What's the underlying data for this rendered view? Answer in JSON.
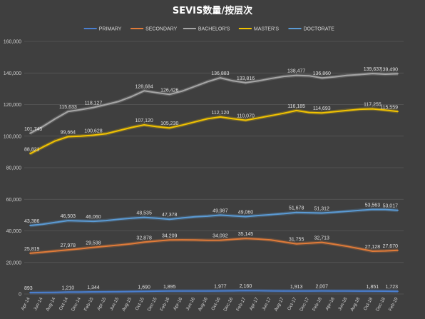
{
  "chart_data": {
    "type": "line",
    "title": "SEVIS数量/按层次",
    "ylim": [
      0,
      160000
    ],
    "yticks": [
      0,
      20000,
      40000,
      60000,
      80000,
      100000,
      120000,
      140000,
      160000
    ],
    "ytick_labels": [
      "0",
      "20,000",
      "40,000",
      "60,000",
      "80,000",
      "100,000",
      "120,000",
      "140,000",
      "160,000"
    ],
    "grid": true,
    "legend_position": "top",
    "x": [
      "Apr-14",
      "Jun-14",
      "Aug-14",
      "Oct-14",
      "Dec-14",
      "Feb-15",
      "Apr-15",
      "Jun-15",
      "Aug-15",
      "Oct-15",
      "Dec-15",
      "Feb-16",
      "Apr-16",
      "Jun-16",
      "Aug-16",
      "Oct-16",
      "Dec-16",
      "Feb-17",
      "Apr-17",
      "Jun-17",
      "Aug-17",
      "Oct-17",
      "Dec-17",
      "Feb-18",
      "Apr-18",
      "Jun-18",
      "Aug-18",
      "Oct-18",
      "Dec-18",
      "Feb-19"
    ],
    "series": [
      {
        "name": "PRIMARY",
        "color": "#4a7fd0",
        "values": [
          893,
          950,
          1050,
          1210,
          1250,
          1344,
          1400,
          1480,
          1560,
          1690,
          1800,
          1895,
          1920,
          1940,
          1960,
          1977,
          2050,
          2160,
          2100,
          2000,
          1950,
          1913,
          1960,
          2007,
          1950,
          1900,
          1870,
          1851,
          1800,
          1723
        ],
        "labels": [
          [
            0,
            "893"
          ],
          [
            3,
            "1,210"
          ],
          [
            5,
            "1,344"
          ],
          [
            9,
            "1,690"
          ],
          [
            11,
            "1,895"
          ],
          [
            15,
            "1,977"
          ],
          [
            17,
            "2,160"
          ],
          [
            21,
            "1,913"
          ],
          [
            23,
            "2,007"
          ],
          [
            27,
            "1,851"
          ],
          [
            29,
            "1,723"
          ]
        ]
      },
      {
        "name": "SECONDARY",
        "color": "#e07b39",
        "values": [
          25819,
          26500,
          27200,
          27978,
          28700,
          29538,
          30300,
          31000,
          31800,
          32878,
          33600,
          34209,
          34300,
          34200,
          34000,
          34092,
          34600,
          35145,
          34800,
          34200,
          33000,
          31755,
          32200,
          32713,
          31500,
          30200,
          28700,
          27128,
          27300,
          27670
        ],
        "labels": [
          [
            0,
            "25,819"
          ],
          [
            3,
            "27,978"
          ],
          [
            5,
            "29,538"
          ],
          [
            9,
            "32,878"
          ],
          [
            11,
            "34,209"
          ],
          [
            15,
            "34,092"
          ],
          [
            17,
            "35,145"
          ],
          [
            21,
            "31,755"
          ],
          [
            23,
            "32,713"
          ],
          [
            27,
            "27,128"
          ],
          [
            29,
            "27,670"
          ]
        ]
      },
      {
        "name": "BACHELOR'S",
        "color": "#a6a6a6",
        "values": [
          101745,
          106000,
          111000,
          115633,
          116800,
          118127,
          120000,
          122000,
          125000,
          128684,
          127500,
          126426,
          128500,
          131500,
          134500,
          136883,
          135000,
          133816,
          135000,
          136500,
          137800,
          138477,
          138200,
          136860,
          137500,
          138500,
          139000,
          139637,
          139200,
          139490
        ],
        "labels": [
          [
            0,
            "101,745"
          ],
          [
            3,
            "115,633"
          ],
          [
            5,
            "118,127"
          ],
          [
            9,
            "128,684"
          ],
          [
            11,
            "126,426"
          ],
          [
            15,
            "136,883"
          ],
          [
            17,
            "133,816"
          ],
          [
            21,
            "138,477"
          ],
          [
            23,
            "136,860"
          ],
          [
            27,
            "139,637"
          ],
          [
            29,
            "139,490"
          ]
        ]
      },
      {
        "name": "MASTER'S",
        "color": "#f2c300",
        "values": [
          88821,
          93000,
          97000,
          99664,
          100000,
          100628,
          101500,
          103500,
          105500,
          107120,
          106000,
          105230,
          107000,
          109000,
          111000,
          112120,
          111000,
          110070,
          111500,
          113000,
          114500,
          116185,
          115000,
          114693,
          115500,
          116300,
          117000,
          117255,
          116500,
          115559
        ],
        "labels": [
          [
            0,
            "88,821"
          ],
          [
            3,
            "99,664"
          ],
          [
            5,
            "100,628"
          ],
          [
            9,
            "107,120"
          ],
          [
            11,
            "105,230"
          ],
          [
            15,
            "112,120"
          ],
          [
            17,
            "110,070"
          ],
          [
            21,
            "116,185"
          ],
          [
            23,
            "114,693"
          ],
          [
            27,
            "117,255"
          ],
          [
            29,
            "115,559"
          ]
        ]
      },
      {
        "name": "DOCTORATE",
        "color": "#5b9bd5",
        "values": [
          43386,
          44200,
          45400,
          46503,
          46300,
          46060,
          46500,
          47300,
          48000,
          48535,
          48000,
          47378,
          48200,
          48900,
          49300,
          49987,
          49500,
          49060,
          49700,
          50300,
          50900,
          51678,
          51500,
          51312,
          51800,
          52400,
          53000,
          53563,
          53500,
          53017
        ],
        "labels": [
          [
            0,
            "43,386"
          ],
          [
            3,
            "46,503"
          ],
          [
            5,
            "46,060"
          ],
          [
            9,
            "48,535"
          ],
          [
            11,
            "47,378"
          ],
          [
            15,
            "49,987"
          ],
          [
            17,
            "49,060"
          ],
          [
            21,
            "51,678"
          ],
          [
            23,
            "51,312"
          ],
          [
            27,
            "53,563"
          ],
          [
            29,
            "53,017"
          ]
        ]
      }
    ]
  }
}
